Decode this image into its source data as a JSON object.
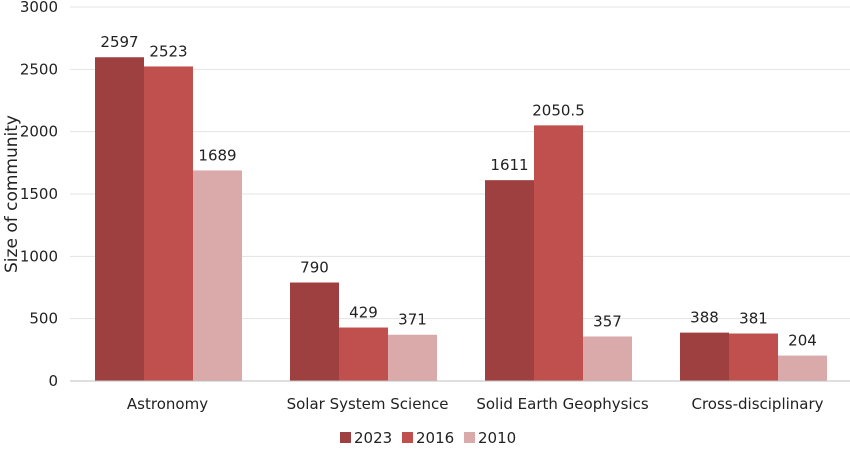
{
  "chart_data": {
    "type": "bar",
    "title": "",
    "xlabel": "",
    "ylabel": "Size of community",
    "ylim": [
      0,
      3000
    ],
    "yticks": [
      0,
      500,
      1000,
      1500,
      2000,
      2500,
      3000
    ],
    "grid": true,
    "legend_position": "bottom",
    "categories": [
      "Astronomy",
      "Solar System Science",
      "Solid Earth Geophysics",
      "Cross-disciplinary"
    ],
    "series": [
      {
        "name": "2023",
        "color": "#9e4040",
        "values": [
          2597,
          790,
          1611,
          388
        ]
      },
      {
        "name": "2016",
        "color": "#c0504d",
        "values": [
          2523,
          429,
          2050.5,
          381
        ]
      },
      {
        "name": "2010",
        "color": "#d9aaa9",
        "values": [
          1689,
          371,
          357,
          204
        ]
      }
    ]
  }
}
